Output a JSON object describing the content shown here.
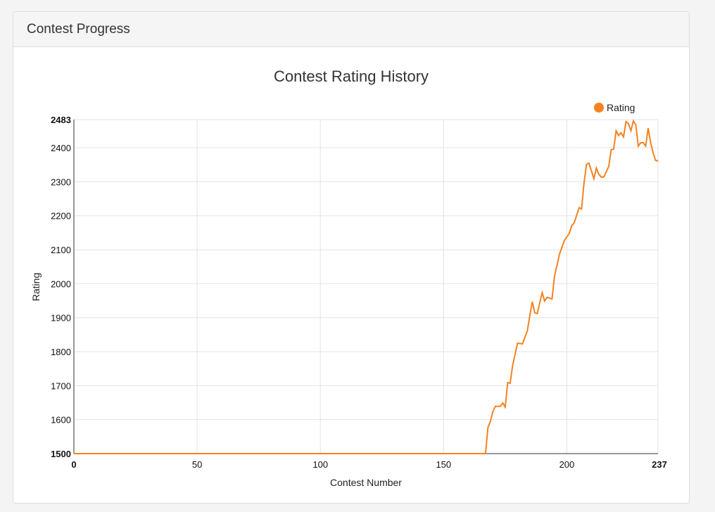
{
  "panel": {
    "title": "Contest Progress"
  },
  "chart_data": {
    "type": "line",
    "title": "Contest Rating History",
    "xlabel": "Contest Number",
    "ylabel": "Rating",
    "xlim": [
      0,
      237
    ],
    "ylim": [
      1500,
      2483
    ],
    "xticks": [
      0,
      50,
      100,
      150,
      200,
      237
    ],
    "yticks": [
      1500,
      1600,
      1700,
      1800,
      1900,
      2000,
      2100,
      2200,
      2300,
      2400,
      2483
    ],
    "grid": true,
    "legend": {
      "position": "top-right",
      "entries": [
        "Rating"
      ]
    },
    "color": "#f58220",
    "series": [
      {
        "name": "Rating",
        "points": [
          [
            0,
            1500
          ],
          [
            167,
            1500
          ],
          [
            168,
            1577
          ],
          [
            169,
            1595
          ],
          [
            170,
            1624
          ],
          [
            171,
            1639
          ],
          [
            173,
            1639
          ],
          [
            174,
            1649
          ],
          [
            175,
            1637
          ],
          [
            176,
            1709
          ],
          [
            177,
            1707
          ],
          [
            178,
            1759
          ],
          [
            180,
            1825
          ],
          [
            182,
            1823
          ],
          [
            184,
            1862
          ],
          [
            185,
            1906
          ],
          [
            186,
            1947
          ],
          [
            187,
            1914
          ],
          [
            188,
            1912
          ],
          [
            190,
            1974
          ],
          [
            191,
            1949
          ],
          [
            192,
            1960
          ],
          [
            194,
            1955
          ],
          [
            195,
            2022
          ],
          [
            196,
            2053
          ],
          [
            197,
            2086
          ],
          [
            199,
            2127
          ],
          [
            201,
            2148
          ],
          [
            202,
            2171
          ],
          [
            203,
            2179
          ],
          [
            205,
            2224
          ],
          [
            206,
            2220
          ],
          [
            207,
            2297
          ],
          [
            208,
            2351
          ],
          [
            209,
            2355
          ],
          [
            211,
            2309
          ],
          [
            212,
            2340
          ],
          [
            213,
            2322
          ],
          [
            214,
            2314
          ],
          [
            215,
            2314
          ],
          [
            217,
            2345
          ],
          [
            218,
            2394
          ],
          [
            219,
            2396
          ],
          [
            220,
            2450
          ],
          [
            221,
            2436
          ],
          [
            222,
            2444
          ],
          [
            223,
            2432
          ],
          [
            224,
            2477
          ],
          [
            225,
            2471
          ],
          [
            226,
            2450
          ],
          [
            227,
            2479
          ],
          [
            228,
            2467
          ],
          [
            229,
            2405
          ],
          [
            230,
            2415
          ],
          [
            231,
            2415
          ],
          [
            232,
            2405
          ],
          [
            233,
            2458
          ],
          [
            234,
            2415
          ],
          [
            235,
            2386
          ],
          [
            236,
            2363
          ],
          [
            237,
            2361
          ]
        ]
      }
    ]
  }
}
